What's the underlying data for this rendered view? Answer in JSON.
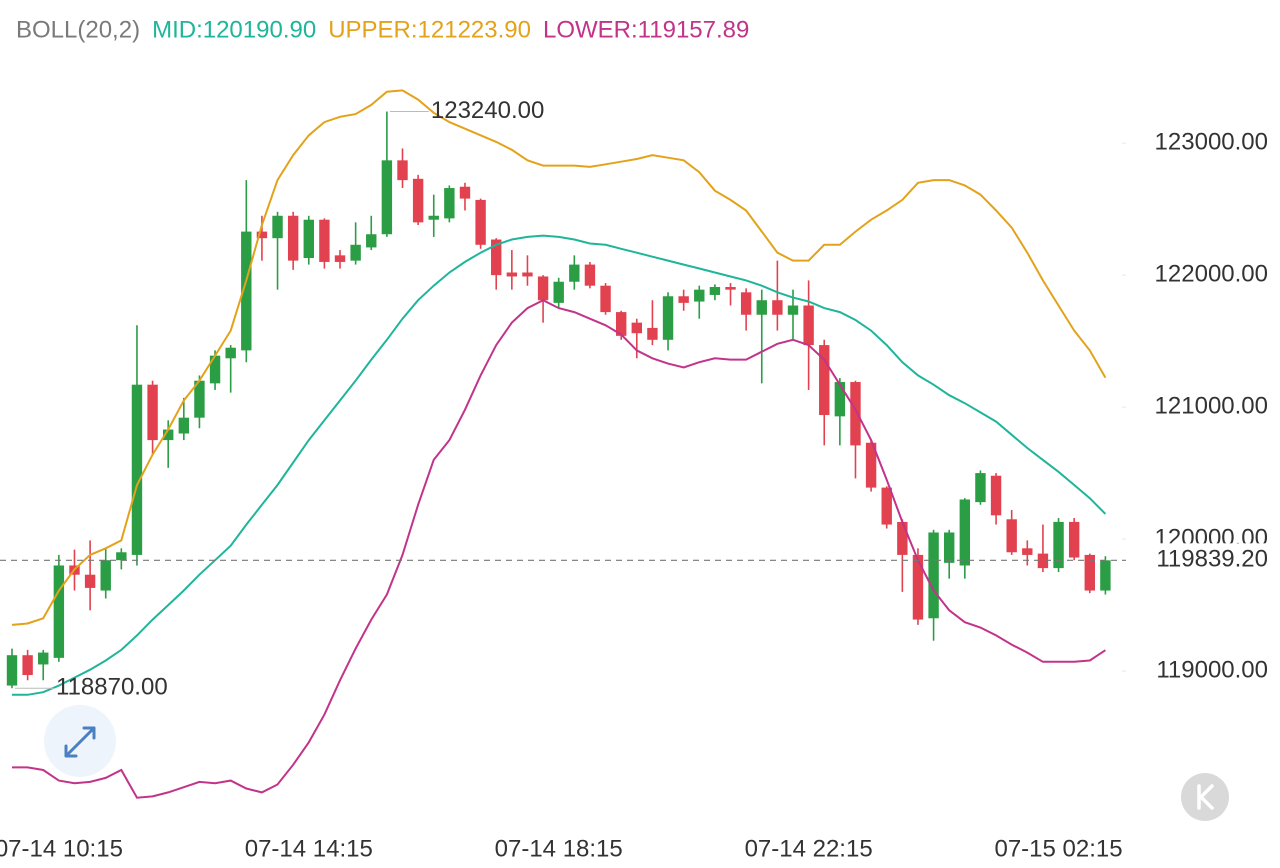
{
  "chart_data": {
    "type": "candlestick",
    "title": "BOLL(20,2)",
    "categories": [
      null,
      null,
      null,
      "07-14 10:15",
      null,
      null,
      null,
      null,
      null,
      null,
      null,
      null,
      null,
      null,
      null,
      null,
      null,
      null,
      null,
      "07-14 14:15",
      null,
      null,
      null,
      null,
      null,
      null,
      null,
      null,
      null,
      null,
      null,
      null,
      null,
      null,
      null,
      "07-14 18:15",
      null,
      null,
      null,
      null,
      null,
      null,
      null,
      null,
      null,
      null,
      null,
      null,
      null,
      null,
      null,
      "07-14 22:15",
      null,
      null,
      null,
      null,
      null,
      null,
      null,
      null,
      null,
      null,
      null,
      null,
      null,
      null,
      null,
      "07-15 02:15",
      null,
      null,
      null
    ],
    "open": [
      118890,
      119120,
      119050,
      119100,
      119800,
      119730,
      119610,
      119840,
      119880,
      121170,
      120750,
      120800,
      120920,
      121180,
      121370,
      121430,
      122330,
      122280,
      122450,
      122130,
      122420,
      122150,
      122110,
      122210,
      122310,
      122870,
      122730,
      122420,
      122430,
      122670,
      122570,
      122270,
      122020,
      122020,
      121990,
      121790,
      121950,
      122080,
      121920,
      121720,
      121640,
      121600,
      121510,
      121840,
      121800,
      121850,
      121910,
      121870,
      121700,
      121810,
      121700,
      121770,
      121470,
      120930,
      121190,
      120730,
      120390,
      120130,
      119880,
      119400,
      119820,
      119800,
      120280,
      120480,
      120150,
      119930,
      119890,
      119780,
      120130,
      119880,
      119610
    ],
    "high": [
      119170,
      119160,
      119160,
      119880,
      119920,
      119990,
      119930,
      119930,
      121620,
      121200,
      120900,
      121070,
      121240,
      121430,
      121470,
      122720,
      122450,
      122480,
      122480,
      122450,
      122430,
      122190,
      122400,
      122450,
      123240,
      122960,
      122760,
      122610,
      122680,
      122700,
      122580,
      122280,
      122190,
      122150,
      122000,
      121980,
      122150,
      122100,
      121940,
      121730,
      121670,
      121810,
      121870,
      121890,
      121920,
      121930,
      121940,
      121900,
      121890,
      122110,
      121890,
      121960,
      121510,
      121220,
      121200,
      120750,
      120400,
      120150,
      119930,
      120070,
      120070,
      120310,
      120520,
      120500,
      120220,
      119990,
      120110,
      120160,
      120160,
      119890,
      119870
    ],
    "low": [
      118870,
      118930,
      118930,
      119070,
      119610,
      119460,
      119550,
      119770,
      119800,
      120640,
      120540,
      120750,
      120840,
      121130,
      121110,
      121340,
      122110,
      121890,
      122040,
      122080,
      122050,
      122050,
      122080,
      122190,
      122290,
      122660,
      122380,
      122290,
      122400,
      122490,
      122200,
      121890,
      121890,
      121920,
      121640,
      121750,
      121890,
      121900,
      121700,
      121510,
      121370,
      121470,
      121430,
      121730,
      121670,
      121810,
      121770,
      121580,
      121180,
      121580,
      121510,
      121130,
      120710,
      120710,
      120460,
      120360,
      120080,
      119600,
      119350,
      119230,
      119700,
      119700,
      120260,
      120110,
      119880,
      119800,
      119750,
      119750,
      119840,
      119590,
      119580
    ],
    "close": [
      119120,
      118970,
      119140,
      119800,
      119730,
      119630,
      119840,
      119900,
      121170,
      120750,
      120830,
      120920,
      121200,
      121390,
      121450,
      122330,
      122280,
      122450,
      122110,
      122420,
      122100,
      122100,
      122230,
      122310,
      122870,
      122720,
      122400,
      122450,
      122660,
      122580,
      122230,
      122000,
      121990,
      121990,
      121810,
      121950,
      122080,
      121920,
      121720,
      121540,
      121560,
      121510,
      121840,
      121790,
      121890,
      121910,
      121890,
      121700,
      121810,
      121700,
      121770,
      121470,
      120940,
      121190,
      120710,
      120390,
      120110,
      119880,
      119390,
      120050,
      120050,
      120300,
      120500,
      120180,
      119900,
      119880,
      119780,
      120130,
      119860,
      119610,
      119839.2
    ],
    "up_color": "#2a9d45",
    "down_color": "#e2424f",
    "series": [
      {
        "name": "MID:120190.90",
        "color": "#1fb59a",
        "values": [
          118820,
          118820,
          118840,
          118890,
          118950,
          119010,
          119080,
          119160,
          119270,
          119390,
          119500,
          119610,
          119730,
          119840,
          119950,
          120110,
          120260,
          120410,
          120580,
          120750,
          120900,
          121050,
          121200,
          121360,
          121510,
          121670,
          121810,
          121920,
          122020,
          122100,
          122170,
          122230,
          122270,
          122290,
          122300,
          122290,
          122270,
          122240,
          122230,
          122200,
          122170,
          122140,
          122110,
          122080,
          122050,
          122020,
          121990,
          121960,
          121920,
          121870,
          121830,
          121800,
          121750,
          121720,
          121660,
          121580,
          121470,
          121340,
          121240,
          121170,
          121090,
          121030,
          120960,
          120890,
          120790,
          120690,
          120600,
          120510,
          120410,
          120310,
          120190.9
        ]
      },
      {
        "name": "UPPER:121223.90",
        "color": "#e3a21a",
        "values": [
          119350,
          119360,
          119400,
          119610,
          119770,
          119880,
          119930,
          119990,
          120410,
          120640,
          120830,
          121050,
          121200,
          121390,
          121580,
          121960,
          122380,
          122720,
          122910,
          123060,
          123160,
          123200,
          123220,
          123290,
          123390,
          123400,
          123330,
          123230,
          123160,
          123110,
          123060,
          123010,
          122950,
          122870,
          122830,
          122830,
          122830,
          122820,
          122840,
          122860,
          122880,
          122910,
          122890,
          122870,
          122780,
          122640,
          122570,
          122490,
          122330,
          122170,
          122110,
          122110,
          122230,
          122230,
          122330,
          122420,
          122490,
          122570,
          122700,
          122720,
          122720,
          122680,
          122610,
          122490,
          122360,
          122170,
          121960,
          121770,
          121580,
          121430,
          121223.9
        ]
      },
      {
        "name": "LOWER:119157.89",
        "color": "#c2338a",
        "values": [
          118270,
          118270,
          118250,
          118170,
          118150,
          118160,
          118190,
          118250,
          118040,
          118050,
          118080,
          118120,
          118160,
          118150,
          118170,
          118110,
          118080,
          118140,
          118290,
          118460,
          118670,
          118930,
          119170,
          119390,
          119580,
          119880,
          120260,
          120600,
          120750,
          120980,
          121240,
          121470,
          121640,
          121750,
          121810,
          121750,
          121720,
          121670,
          121620,
          121550,
          121430,
          121370,
          121330,
          121300,
          121340,
          121370,
          121360,
          121360,
          121420,
          121480,
          121510,
          121470,
          121360,
          121170,
          120980,
          120750,
          120450,
          120130,
          119840,
          119610,
          119460,
          119370,
          119330,
          119270,
          119200,
          119140,
          119070,
          119070,
          119070,
          119080,
          119157.89
        ]
      }
    ],
    "ylim": [
      117800,
      123600
    ],
    "yticks": [
      {
        "value": 119000,
        "label": "119000.00"
      },
      {
        "value": 120000,
        "label": "120000.00"
      },
      {
        "value": 121000,
        "label": "121000.00"
      },
      {
        "value": 122000,
        "label": "122000.00"
      },
      {
        "value": 123000,
        "label": "123000.00"
      }
    ],
    "annotations": [
      {
        "value": 123240,
        "label": "123240.00"
      },
      {
        "value": 118870,
        "label": "118870.00"
      }
    ],
    "last_price": {
      "value": 119839.2,
      "label": "119839.20"
    },
    "grid": false
  }
}
